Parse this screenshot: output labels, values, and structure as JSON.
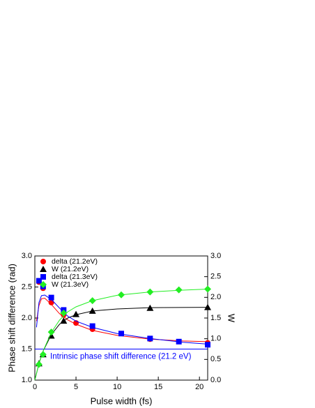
{
  "chart_data": {
    "type": "scatter",
    "xlabel": "Pulse width (fs)",
    "ylabel": "Phase shift difference (rad)",
    "y2label": "W",
    "xlim": [
      0,
      21
    ],
    "xticks": [
      0,
      5,
      10,
      15,
      20
    ],
    "ylim": [
      1,
      3
    ],
    "yticks": [
      {
        "value": 1,
        "label": "1.0"
      },
      {
        "value": 1.5,
        "label": "1.5"
      },
      {
        "value": 2,
        "label": "2.0"
      },
      {
        "value": 2.5,
        "label": "2.5"
      },
      {
        "value": 3,
        "label": "3.0"
      }
    ],
    "y2lim": [
      0,
      3
    ],
    "y2ticks": [
      {
        "value": 0,
        "label": "0.0"
      },
      {
        "value": 0.5,
        "label": "0.5"
      },
      {
        "value": 1,
        "label": "1.0"
      },
      {
        "value": 1.5,
        "label": "1.5"
      },
      {
        "value": 2,
        "label": "2.0"
      },
      {
        "value": 2.5,
        "label": "2.5"
      },
      {
        "value": 3,
        "label": "3.0"
      }
    ],
    "legend": "upper left",
    "hline": {
      "value": 1.5,
      "color": "#0000ff",
      "label": "Intrinsic phase shift difference (21.2 eV)"
    },
    "series": [
      {
        "name": "delta (21.2eV)",
        "color": "#ff0000",
        "marker": "circle",
        "axis": "y",
        "x": [
          0.5,
          1,
          2,
          3.5,
          5,
          7,
          14,
          21
        ],
        "values": [
          2.58,
          2.48,
          2.25,
          2.05,
          1.92,
          1.82,
          1.66,
          1.6
        ],
        "fit": {
          "x": [
            0.2,
            0.5,
            0.8,
            1.2,
            2,
            3,
            4,
            5,
            7,
            10,
            14,
            18,
            21
          ],
          "values": [
            1.95,
            2.2,
            2.31,
            2.32,
            2.22,
            2.07,
            1.97,
            1.9,
            1.8,
            1.72,
            1.66,
            1.63,
            1.62
          ]
        }
      },
      {
        "name": "W (21.2eV)",
        "color": "#000000",
        "marker": "triangle",
        "axis": "y2",
        "x": [
          0.5,
          1,
          2,
          3.5,
          5,
          7,
          14,
          21
        ],
        "values": [
          0.4,
          0.62,
          1.07,
          1.43,
          1.59,
          1.67,
          1.74,
          1.76
        ],
        "fit": {
          "x": [
            0,
            0.5,
            1,
            2,
            3,
            4,
            5,
            7,
            10,
            14,
            21
          ],
          "values": [
            0,
            0.4,
            0.7,
            1.1,
            1.35,
            1.5,
            1.58,
            1.67,
            1.72,
            1.75,
            1.76
          ]
        }
      },
      {
        "name": "delta (21.3eV)",
        "color": "#0000ff",
        "marker": "square",
        "axis": "y",
        "x": [
          0.5,
          1,
          2,
          3.5,
          7,
          10.5,
          14,
          17.5,
          21
        ],
        "values": [
          2.6,
          2.51,
          2.33,
          2.13,
          1.87,
          1.75,
          1.67,
          1.62,
          1.57
        ],
        "fit": {
          "x": [
            0.2,
            0.5,
            0.8,
            1.2,
            2,
            3,
            4,
            5,
            7,
            10,
            14,
            18,
            21
          ],
          "values": [
            1.85,
            2.25,
            2.36,
            2.37,
            2.3,
            2.16,
            2.03,
            1.95,
            1.85,
            1.75,
            1.67,
            1.61,
            1.58
          ]
        }
      },
      {
        "name": "W (21.3eV)",
        "color": "#22ee22",
        "marker": "diamond",
        "axis": "y2",
        "x": [
          0.5,
          1,
          2,
          3.5,
          7,
          10.5,
          14,
          17.5,
          21
        ],
        "values": [
          0.38,
          0.62,
          1.16,
          1.62,
          1.92,
          2.06,
          2.13,
          2.18,
          2.2
        ],
        "fit": {
          "x": [
            0,
            0.5,
            1,
            2,
            3,
            4,
            5,
            7,
            10,
            14,
            17.5,
            21
          ],
          "values": [
            0,
            0.4,
            0.7,
            1.15,
            1.45,
            1.65,
            1.77,
            1.92,
            2.05,
            2.13,
            2.17,
            2.2
          ]
        }
      }
    ]
  }
}
